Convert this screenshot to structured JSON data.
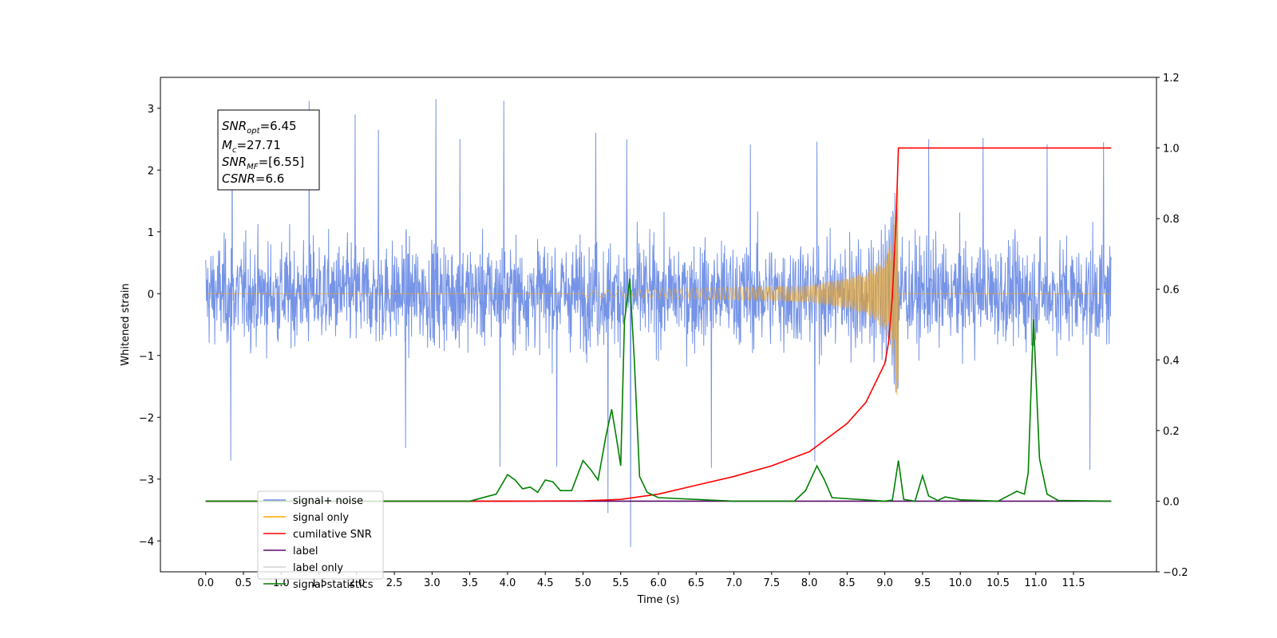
{
  "chart_data": {
    "type": "line",
    "xlabel": "Time (s)",
    "ylabel": "Whitened strain",
    "xlim": [
      -0.6,
      12.6
    ],
    "ylim": [
      -4.5,
      3.5
    ],
    "y2lim": [
      -0.2,
      1.2
    ],
    "x_ticks": [
      0.0,
      0.5,
      1.0,
      1.5,
      2.0,
      2.5,
      3.0,
      3.5,
      4.0,
      4.5,
      5.0,
      5.5,
      6.0,
      6.5,
      7.0,
      7.5,
      8.0,
      8.5,
      9.0,
      9.5,
      10.0,
      10.5,
      11.0,
      11.5
    ],
    "x_tick_labels": [
      "0.0",
      "0.5",
      "1.0",
      "1.5",
      "2.0",
      "2.5",
      "3.0",
      "3.5",
      "4.0",
      "4.5",
      "5.0",
      "5.5",
      "6.0",
      "6.5",
      "7.0",
      "7.5",
      "8.0",
      "8.5",
      "9.0",
      "9.5",
      "10.0",
      "10.5",
      "11.0",
      "11.5"
    ],
    "y_ticks": [
      3,
      2,
      1,
      0,
      -1,
      -2,
      -3,
      -4
    ],
    "y_tick_labels": [
      "3",
      "2",
      "1",
      "0",
      "−1",
      "−2",
      "−3",
      "−4"
    ],
    "y2_ticks": [
      1.2,
      1.0,
      0.8,
      0.6,
      0.4,
      0.2,
      0.0,
      -0.2
    ],
    "y2_tick_labels": [
      "1.2",
      "1.0",
      "0.8",
      "0.6",
      "0.4",
      "0.2",
      "0.0",
      "−0.2"
    ],
    "annotation": {
      "snr_opt_sym": "SNR",
      "snr_opt_sub": "opt",
      "snr_opt_val": "=6.45",
      "mc_sym": "M",
      "mc_sub": "c",
      "mc_val": "=27.71",
      "snr_mf_sym": "SNR",
      "snr_mf_sub": "MF",
      "snr_mf_val": "=[6.55]",
      "csnr_sym": "CSNR",
      "csnr_val": "=6.6"
    },
    "series": [
      {
        "name": "signal+ noise",
        "color": "#6f8ee6",
        "axis": "left",
        "note": "noise-dominated strain, approx. ±1.6 typical envelope with spikes",
        "x_range": [
          0.0,
          12.0
        ],
        "spikes": [
          [
            0.33,
            -2.7
          ],
          [
            0.35,
            2.95
          ],
          [
            1.37,
            3.12
          ],
          [
            1.98,
            2.9
          ],
          [
            2.29,
            2.65
          ],
          [
            2.65,
            -2.5
          ],
          [
            3.05,
            3.15
          ],
          [
            3.37,
            2.5
          ],
          [
            3.9,
            -2.8
          ],
          [
            3.95,
            3.12
          ],
          [
            4.65,
            -2.8
          ],
          [
            5.17,
            2.55
          ],
          [
            5.33,
            -3.5
          ],
          [
            5.58,
            2.55
          ],
          [
            5.63,
            -4.1
          ],
          [
            6.7,
            -2.85
          ],
          [
            7.22,
            2.5
          ],
          [
            8.07,
            -2.75
          ],
          [
            8.1,
            2.55
          ],
          [
            9.58,
            2.5
          ],
          [
            10.3,
            2.52
          ],
          [
            11.15,
            2.42
          ],
          [
            11.72,
            -2.85
          ],
          [
            11.9,
            2.45
          ]
        ]
      },
      {
        "name": "signal only",
        "color": "#ffa500",
        "axis": "left",
        "note": "chirp, zero until ~5s, amplitude grows to ~2 at merger t=9.18s",
        "merger_time": 9.18,
        "envelope": [
          [
            5.0,
            0.05
          ],
          [
            7.0,
            0.1
          ],
          [
            8.0,
            0.14
          ],
          [
            8.5,
            0.25
          ],
          [
            8.8,
            0.38
          ],
          [
            9.0,
            0.6
          ],
          [
            9.1,
            0.9
          ],
          [
            9.18,
            2.0
          ]
        ]
      },
      {
        "name": "cumilative SNR",
        "color": "#ff0000",
        "axis": "right",
        "points": [
          [
            0.0,
            0.0
          ],
          [
            4.0,
            0.0
          ],
          [
            5.0,
            0.001
          ],
          [
            5.5,
            0.005
          ],
          [
            6.0,
            0.02
          ],
          [
            6.5,
            0.045
          ],
          [
            7.0,
            0.07
          ],
          [
            7.5,
            0.1
          ],
          [
            8.0,
            0.14
          ],
          [
            8.5,
            0.22
          ],
          [
            8.75,
            0.28
          ],
          [
            9.0,
            0.39
          ],
          [
            9.05,
            0.45
          ],
          [
            9.1,
            0.58
          ],
          [
            9.15,
            0.8
          ],
          [
            9.18,
            1.0
          ],
          [
            12.0,
            1.0
          ]
        ]
      },
      {
        "name": "label",
        "color": "#5c0a6b",
        "axis": "right",
        "points": [
          [
            0.0,
            0.0
          ],
          [
            12.0,
            0.0
          ]
        ]
      },
      {
        "name": "label only",
        "color": "#d3d3d3",
        "axis": "right",
        "points": []
      },
      {
        "name": "signal statistics",
        "color": "#008000",
        "axis": "right",
        "points": [
          [
            0.0,
            0.0
          ],
          [
            3.5,
            0.0
          ],
          [
            3.85,
            0.02
          ],
          [
            4.0,
            0.075
          ],
          [
            4.1,
            0.06
          ],
          [
            4.2,
            0.035
          ],
          [
            4.3,
            0.04
          ],
          [
            4.4,
            0.025
          ],
          [
            4.5,
            0.06
          ],
          [
            4.6,
            0.055
          ],
          [
            4.7,
            0.03
          ],
          [
            4.85,
            0.03
          ],
          [
            5.0,
            0.115
          ],
          [
            5.1,
            0.09
          ],
          [
            5.2,
            0.06
          ],
          [
            5.3,
            0.18
          ],
          [
            5.38,
            0.26
          ],
          [
            5.45,
            0.17
          ],
          [
            5.5,
            0.1
          ],
          [
            5.55,
            0.51
          ],
          [
            5.62,
            0.63
          ],
          [
            5.68,
            0.4
          ],
          [
            5.75,
            0.07
          ],
          [
            5.85,
            0.025
          ],
          [
            6.0,
            0.01
          ],
          [
            7.0,
            0.0
          ],
          [
            7.8,
            0.0
          ],
          [
            7.95,
            0.03
          ],
          [
            8.1,
            0.1
          ],
          [
            8.2,
            0.06
          ],
          [
            8.3,
            0.01
          ],
          [
            9.0,
            0.0
          ],
          [
            9.1,
            0.003
          ],
          [
            9.18,
            0.115
          ],
          [
            9.25,
            0.005
          ],
          [
            9.4,
            0.0
          ],
          [
            9.5,
            0.072
          ],
          [
            9.58,
            0.015
          ],
          [
            9.7,
            0.002
          ],
          [
            9.8,
            0.012
          ],
          [
            10.0,
            0.004
          ],
          [
            10.5,
            0.0
          ],
          [
            10.75,
            0.028
          ],
          [
            10.85,
            0.02
          ],
          [
            10.9,
            0.08
          ],
          [
            10.97,
            0.515
          ],
          [
            11.05,
            0.12
          ],
          [
            11.15,
            0.02
          ],
          [
            11.3,
            0.002
          ],
          [
            12.0,
            0.0
          ]
        ]
      }
    ],
    "legend": {
      "placement": "lower-left",
      "entries": [
        "signal+ noise",
        "signal only",
        "cumilative SNR",
        "label",
        "label only",
        "signal statistics"
      ]
    }
  }
}
